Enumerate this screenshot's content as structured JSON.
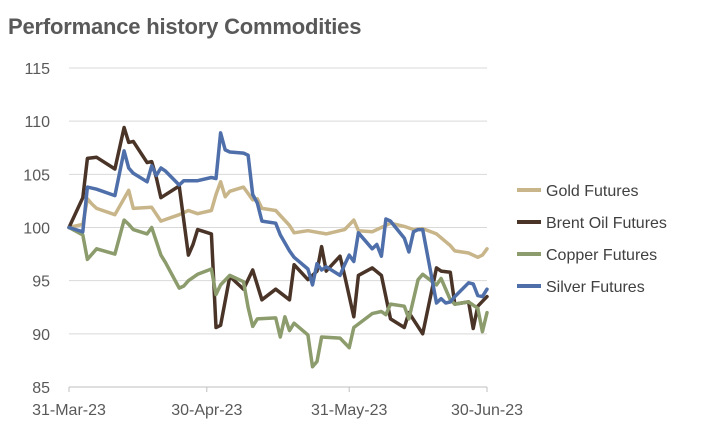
{
  "chart_data": {
    "type": "line",
    "title": "Performance history Commodities",
    "xlabel": "",
    "ylabel": "",
    "ylim": [
      85,
      115
    ],
    "yticks": [
      85,
      90,
      95,
      100,
      105,
      110,
      115
    ],
    "xlim": [
      "2023-03-31",
      "2023-06-30"
    ],
    "xticks": [
      "31-Mar-23",
      "30-Apr-23",
      "31-May-23",
      "30-Jun-23"
    ],
    "grid": true,
    "legend_position": "right",
    "series": [
      {
        "name": "Gold Futures",
        "color": "#c8b58a",
        "x": [
          "2023-03-31",
          "2023-04-03",
          "2023-04-04",
          "2023-04-05",
          "2023-04-06",
          "2023-04-10",
          "2023-04-13",
          "2023-04-14",
          "2023-04-18",
          "2023-04-20",
          "2023-04-24",
          "2023-04-26",
          "2023-04-28",
          "2023-05-01",
          "2023-05-02",
          "2023-05-03",
          "2023-05-04",
          "2023-05-05",
          "2023-05-08",
          "2023-05-10",
          "2023-05-11",
          "2023-05-12",
          "2023-05-15",
          "2023-05-18",
          "2023-05-19",
          "2023-05-22",
          "2023-05-26",
          "2023-05-30",
          "2023-06-01",
          "2023-06-02",
          "2023-06-05",
          "2023-06-09",
          "2023-06-12",
          "2023-06-14",
          "2023-06-16",
          "2023-06-19",
          "2023-06-22",
          "2023-06-23",
          "2023-06-26",
          "2023-06-28",
          "2023-06-29",
          "2023-06-30"
        ],
        "values": [
          100.0,
          100.3,
          102.7,
          102.2,
          101.8,
          101.2,
          103.5,
          101.8,
          101.9,
          100.6,
          101.2,
          101.6,
          101.3,
          101.6,
          103.1,
          104.3,
          102.9,
          103.4,
          103.8,
          102.6,
          102.7,
          101.8,
          101.6,
          100.2,
          99.5,
          99.7,
          99.4,
          99.8,
          100.7,
          99.7,
          99.6,
          100.4,
          100.1,
          99.8,
          99.9,
          99.4,
          98.3,
          97.8,
          97.6,
          97.2,
          97.4,
          98.0
        ]
      },
      {
        "name": "Brent Oil Futures",
        "color": "#4a3428",
        "x": [
          "2023-03-31",
          "2023-04-03",
          "2023-04-04",
          "2023-04-06",
          "2023-04-10",
          "2023-04-12",
          "2023-04-13",
          "2023-04-14",
          "2023-04-17",
          "2023-04-18",
          "2023-04-19",
          "2023-04-20",
          "2023-04-24",
          "2023-04-26",
          "2023-04-27",
          "2023-04-28",
          "2023-05-01",
          "2023-05-02",
          "2023-05-03",
          "2023-05-05",
          "2023-05-08",
          "2023-05-10",
          "2023-05-12",
          "2023-05-15",
          "2023-05-18",
          "2023-05-19",
          "2023-05-22",
          "2023-05-24",
          "2023-05-25",
          "2023-05-26",
          "2023-05-29",
          "2023-05-30",
          "2023-06-01",
          "2023-06-02",
          "2023-06-05",
          "2023-06-07",
          "2023-06-09",
          "2023-06-12",
          "2023-06-13",
          "2023-06-16",
          "2023-06-19",
          "2023-06-20",
          "2023-06-22",
          "2023-06-23",
          "2023-06-26",
          "2023-06-27",
          "2023-06-28",
          "2023-06-30"
        ],
        "values": [
          100.0,
          102.8,
          106.5,
          106.6,
          105.5,
          109.4,
          108.0,
          108.1,
          106.1,
          106.2,
          104.7,
          102.8,
          103.9,
          97.4,
          98.4,
          99.8,
          99.4,
          90.6,
          90.8,
          95.4,
          94.2,
          96.0,
          93.2,
          94.2,
          93.2,
          96.5,
          95.1,
          95.9,
          98.2,
          95.9,
          97.3,
          95.5,
          91.6,
          95.5,
          96.2,
          95.5,
          91.4,
          90.6,
          92.0,
          90.0,
          96.2,
          95.9,
          95.8,
          92.8,
          93.0,
          90.5,
          92.6,
          93.5
        ]
      },
      {
        "name": "Copper Futures",
        "color": "#8c9c6c",
        "x": [
          "2023-03-31",
          "2023-04-03",
          "2023-04-04",
          "2023-04-06",
          "2023-04-10",
          "2023-04-12",
          "2023-04-13",
          "2023-04-14",
          "2023-04-17",
          "2023-04-18",
          "2023-04-20",
          "2023-04-21",
          "2023-04-24",
          "2023-04-25",
          "2023-04-26",
          "2023-04-28",
          "2023-05-01",
          "2023-05-02",
          "2023-05-03",
          "2023-05-05",
          "2023-05-08",
          "2023-05-09",
          "2023-05-10",
          "2023-05-11",
          "2023-05-15",
          "2023-05-16",
          "2023-05-17",
          "2023-05-18",
          "2023-05-19",
          "2023-05-22",
          "2023-05-23",
          "2023-05-24",
          "2023-05-25",
          "2023-05-29",
          "2023-05-31",
          "2023-06-01",
          "2023-06-05",
          "2023-06-07",
          "2023-06-08",
          "2023-06-09",
          "2023-06-12",
          "2023-06-13",
          "2023-06-15",
          "2023-06-16",
          "2023-06-19",
          "2023-06-20",
          "2023-06-22",
          "2023-06-23",
          "2023-06-26",
          "2023-06-28",
          "2023-06-29",
          "2023-06-30"
        ],
        "values": [
          100.0,
          99.3,
          97.0,
          98.0,
          97.5,
          100.7,
          100.3,
          99.8,
          99.4,
          100.0,
          97.4,
          96.7,
          94.3,
          94.5,
          95.0,
          95.6,
          96.1,
          93.7,
          94.6,
          95.5,
          94.9,
          92.5,
          90.7,
          91.4,
          91.5,
          89.7,
          91.6,
          90.3,
          91.0,
          89.9,
          86.9,
          87.4,
          89.7,
          89.6,
          88.7,
          90.6,
          91.9,
          92.1,
          91.8,
          92.8,
          92.6,
          91.4,
          95.1,
          95.6,
          94.6,
          95.2,
          93.2,
          92.8,
          93.0,
          92.4,
          90.2,
          92.0
        ]
      },
      {
        "name": "Silver Futures",
        "color": "#4f6faa",
        "x": [
          "2023-03-31",
          "2023-04-03",
          "2023-04-04",
          "2023-04-06",
          "2023-04-10",
          "2023-04-12",
          "2023-04-13",
          "2023-04-14",
          "2023-04-17",
          "2023-04-18",
          "2023-04-19",
          "2023-04-20",
          "2023-04-21",
          "2023-04-24",
          "2023-04-25",
          "2023-04-28",
          "2023-05-01",
          "2023-05-02",
          "2023-05-03",
          "2023-05-04",
          "2023-05-05",
          "2023-05-08",
          "2023-05-09",
          "2023-05-10",
          "2023-05-11",
          "2023-05-12",
          "2023-05-15",
          "2023-05-16",
          "2023-05-18",
          "2023-05-19",
          "2023-05-22",
          "2023-05-23",
          "2023-05-24",
          "2023-05-25",
          "2023-05-26",
          "2023-05-29",
          "2023-05-30",
          "2023-05-31",
          "2023-06-01",
          "2023-06-02",
          "2023-06-05",
          "2023-06-06",
          "2023-06-07",
          "2023-06-08",
          "2023-06-09",
          "2023-06-12",
          "2023-06-13",
          "2023-06-14",
          "2023-06-15",
          "2023-06-16",
          "2023-06-19",
          "2023-06-20",
          "2023-06-21",
          "2023-06-22",
          "2023-06-23",
          "2023-06-26",
          "2023-06-27",
          "2023-06-28",
          "2023-06-29",
          "2023-06-30"
        ],
        "values": [
          100.0,
          99.6,
          103.8,
          103.6,
          103.0,
          107.2,
          105.6,
          105.1,
          104.3,
          105.8,
          104.9,
          105.6,
          105.3,
          104.0,
          104.4,
          104.4,
          104.7,
          104.6,
          108.9,
          107.3,
          107.1,
          107.0,
          106.8,
          103.1,
          102.3,
          100.6,
          100.4,
          99.3,
          97.8,
          97.2,
          96.1,
          94.6,
          96.6,
          96.0,
          96.3,
          95.5,
          96.5,
          97.4,
          96.8,
          99.5,
          98.0,
          98.4,
          97.3,
          100.8,
          100.6,
          99.0,
          97.7,
          99.6,
          99.8,
          99.8,
          92.9,
          93.3,
          92.9,
          93.0,
          93.5,
          94.8,
          94.7,
          93.6,
          93.5,
          94.2
        ]
      }
    ]
  }
}
